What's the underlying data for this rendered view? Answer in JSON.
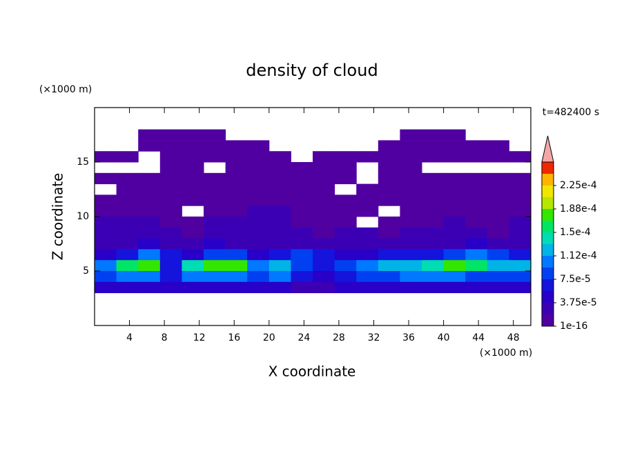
{
  "chart_data": {
    "type": "contour",
    "title": "density of cloud",
    "x_label": "X coordinate",
    "y_label": "Z coordinate",
    "x_unit": "(×1000 m)",
    "y_unit": "(×1000 m)",
    "time_label": "t=482400 s",
    "xlim": [
      0,
      50
    ],
    "ylim": [
      0,
      20
    ],
    "xticks": [
      4,
      8,
      12,
      16,
      20,
      24,
      28,
      32,
      36,
      40,
      44,
      48
    ],
    "yticks": [
      5,
      10,
      15
    ],
    "levels": [
      1e-16,
      1.875e-05,
      3.75e-05,
      5.625e-05,
      7.5e-05,
      9.375e-05,
      0.0001125,
      0.00013125,
      0.00015,
      0.00016875,
      0.0001875,
      0.00020625,
      0.000225,
      0.00024375
    ],
    "colors": [
      "#5000a0",
      "#3c00b4",
      "#2800c8",
      "#1414dc",
      "#0040f0",
      "#0078ff",
      "#00b4e6",
      "#00dcb4",
      "#00e664",
      "#32e600",
      "#b4e600",
      "#f0e600",
      "#ffb400",
      "#f02800"
    ],
    "extend_color": "#f4a6a6",
    "colorbar_ticks": [
      1e-16,
      {
        "value": 3.75e-05,
        "label": "3.75e-5"
      },
      {
        "value": 7.5e-05,
        "label": "7.5e-5"
      },
      {
        "value": 0.0001125,
        "label": "1.12e-4"
      },
      {
        "value": 0.00015,
        "label": "1.5e-4"
      },
      {
        "value": 0.0001875,
        "label": "1.88e-4"
      },
      {
        "value": 0.000225,
        "label": "2.25e-4"
      }
    ],
    "field": {
      "x": [
        1.25,
        3.75,
        6.25,
        8.75,
        11.25,
        13.75,
        16.25,
        18.75,
        21.25,
        23.75,
        26.25,
        28.75,
        31.25,
        33.75,
        36.25,
        38.75,
        41.25,
        43.75,
        46.25,
        48.75
      ],
      "z": [
        17.5,
        16.5,
        15.5,
        14.5,
        13.5,
        12.5,
        11.5,
        10.5,
        9.5,
        8.5,
        7.5,
        6.5,
        5.5,
        4.5,
        3.5
      ],
      "values": [
        [
          0,
          0,
          5e-06,
          5e-06,
          5e-06,
          5e-06,
          0,
          0,
          0,
          0,
          0,
          0,
          0,
          0,
          5e-06,
          5e-06,
          5e-06,
          0,
          0,
          0
        ],
        [
          0,
          0,
          5e-06,
          5e-06,
          5e-06,
          5e-06,
          5e-06,
          5e-06,
          0,
          0,
          0,
          0,
          0,
          5e-06,
          5e-06,
          5e-06,
          5e-06,
          5e-06,
          5e-06,
          0
        ],
        [
          5e-06,
          5e-06,
          0,
          5e-06,
          5e-06,
          5e-06,
          5e-06,
          5e-06,
          5e-06,
          0,
          5e-06,
          5e-06,
          5e-06,
          5e-06,
          5e-06,
          5e-06,
          5e-06,
          5e-06,
          5e-06,
          5e-06
        ],
        [
          0,
          0,
          0,
          5e-06,
          5e-06,
          0,
          5e-06,
          5e-06,
          5e-06,
          5e-06,
          5e-06,
          5e-06,
          0,
          5e-06,
          5e-06,
          0,
          0,
          0,
          0,
          0
        ],
        [
          5e-06,
          5e-06,
          5e-06,
          5e-06,
          5e-06,
          5e-06,
          5e-06,
          5e-06,
          5e-06,
          5e-06,
          5e-06,
          5e-06,
          0,
          5e-06,
          5e-06,
          5e-06,
          5e-06,
          5e-06,
          5e-06,
          5e-06
        ],
        [
          0,
          5e-06,
          5e-06,
          5e-06,
          5e-06,
          5e-06,
          5e-06,
          5e-06,
          5e-06,
          5e-06,
          5e-06,
          0,
          5e-06,
          5e-06,
          5e-06,
          5e-06,
          5e-06,
          5e-06,
          5e-06,
          5e-06
        ],
        [
          5e-06,
          5e-06,
          5e-06,
          5e-06,
          5e-06,
          5e-06,
          5e-06,
          5e-06,
          5e-06,
          5e-06,
          5e-06,
          5e-06,
          5e-06,
          5e-06,
          5e-06,
          5e-06,
          5e-06,
          5e-06,
          5e-06,
          5e-06
        ],
        [
          5e-06,
          5e-06,
          5e-06,
          5e-06,
          0,
          5e-06,
          5e-06,
          2.5e-05,
          2.5e-05,
          5e-06,
          5e-06,
          5e-06,
          5e-06,
          0,
          5e-06,
          5e-06,
          5e-06,
          5e-06,
          5e-06,
          5e-06
        ],
        [
          2.5e-05,
          2.5e-05,
          2.5e-05,
          5e-06,
          5e-06,
          2.5e-05,
          2.5e-05,
          2.5e-05,
          2.5e-05,
          5e-06,
          5e-06,
          5e-06,
          0,
          5e-06,
          5e-06,
          5e-06,
          2.5e-05,
          5e-06,
          5e-06,
          2.5e-05
        ],
        [
          2.5e-05,
          2.5e-05,
          2.5e-05,
          2.5e-05,
          5e-06,
          2.5e-05,
          2.5e-05,
          2.5e-05,
          2.5e-05,
          2.5e-05,
          5e-06,
          2.5e-05,
          2.5e-05,
          5e-06,
          2.5e-05,
          2.5e-05,
          2.5e-05,
          2.5e-05,
          5e-06,
          2.5e-05
        ],
        [
          2.5e-05,
          2.5e-05,
          4e-05,
          2.5e-05,
          2.5e-05,
          4e-05,
          2.5e-05,
          2.5e-05,
          2.5e-05,
          2.5e-05,
          2.5e-05,
          2.5e-05,
          2.5e-05,
          2.5e-05,
          2.5e-05,
          2.5e-05,
          2.5e-05,
          4e-05,
          2.5e-05,
          2.5e-05
        ],
        [
          4e-05,
          6e-05,
          0.0001,
          6e-05,
          4e-05,
          8e-05,
          8e-05,
          4e-05,
          6e-05,
          8e-05,
          6e-05,
          4e-05,
          4e-05,
          6e-05,
          6e-05,
          6e-05,
          8e-05,
          0.0001,
          8e-05,
          6e-05
        ],
        [
          0.0001,
          0.00016,
          0.00017,
          6e-05,
          0.00014,
          0.00018,
          0.00017,
          0.00011,
          0.00012,
          8e-05,
          6e-05,
          8e-05,
          0.0001,
          0.00012,
          0.00012,
          0.00014,
          0.00017,
          0.00015,
          0.00012,
          0.00013
        ],
        [
          8e-05,
          0.0001,
          0.0001,
          6e-05,
          0.0001,
          0.00011,
          0.0001,
          9e-05,
          0.0001,
          6e-05,
          4e-05,
          6e-05,
          8e-05,
          9e-05,
          0.0001,
          0.0001,
          0.0001,
          9e-05,
          9e-05,
          9e-05
        ],
        [
          4e-05,
          4e-05,
          4e-05,
          4e-05,
          4e-05,
          4e-05,
          4e-05,
          4e-05,
          4e-05,
          2.5e-05,
          2.5e-05,
          4e-05,
          4e-05,
          4e-05,
          4e-05,
          4e-05,
          4e-05,
          4e-05,
          4e-05,
          4e-05
        ]
      ]
    }
  }
}
